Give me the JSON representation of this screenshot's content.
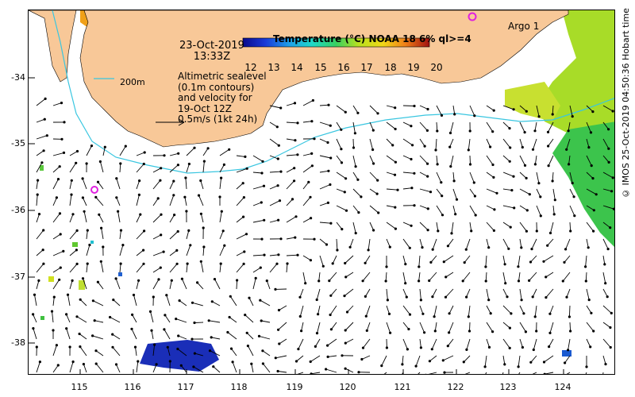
{
  "header": {
    "date": "23-Oct-2019",
    "time": "13:33Z"
  },
  "description": {
    "lines": [
      "Altimetric sealevel",
      "(0.1m contours)",
      "and velocity for",
      "19-Oct 12Z",
      "0.5m/s (1kt 24h)"
    ]
  },
  "scale_bar_label": "200m",
  "legend": {
    "title": "Temperature (°C) NOAA 18 6% ql>=4",
    "ticks": [
      "12",
      "13",
      "14",
      "15",
      "16",
      "17",
      "18",
      "19",
      "20"
    ]
  },
  "argo": {
    "label": "Argo 1"
  },
  "credit": "© IMOS 25-Oct-2019 04:50:36 Hobart time",
  "colors": {
    "land": "#f8c898",
    "contour_200m": "#39c6e0",
    "argo_marker": "#e020e0",
    "arrow": "#000000"
  },
  "chart_data": {
    "type": "map",
    "x_axis": {
      "label": "",
      "ticks": [
        115,
        116,
        117,
        118,
        119,
        120,
        121,
        122,
        123,
        124
      ],
      "range": [
        114.0,
        125.0
      ]
    },
    "y_axis": {
      "label": "",
      "ticks": [
        -34,
        -35,
        -36,
        -37,
        -38
      ],
      "range": [
        -38.5,
        -33.0
      ]
    },
    "argo_floats": [
      {
        "name": "Argo 1",
        "lon": 122.3,
        "lat": -33.15
      },
      {
        "name": "",
        "lon": 115.25,
        "lat": -35.7
      }
    ],
    "colorbar": {
      "min": 12,
      "max": 20,
      "unit": "°C"
    }
  }
}
